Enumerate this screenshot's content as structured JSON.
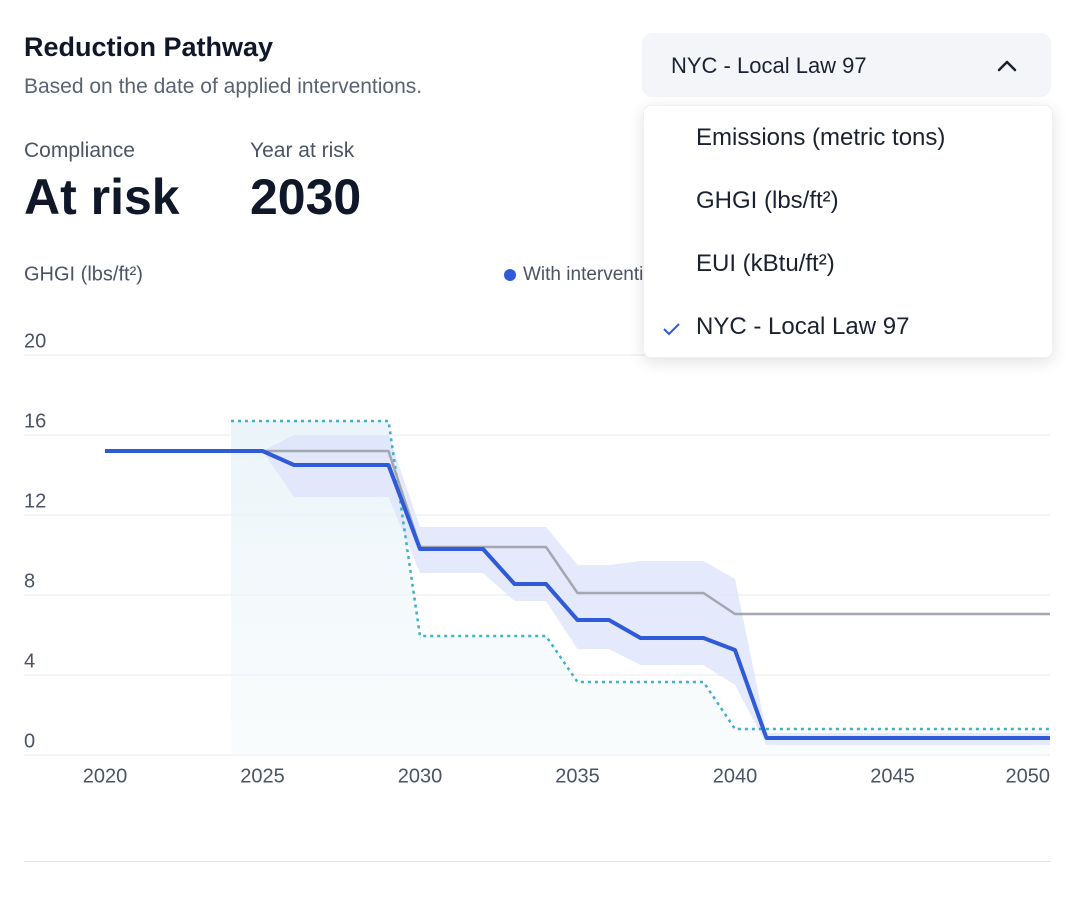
{
  "header": {
    "title": "Reduction Pathway",
    "subtitle": "Based on the date of applied interventions."
  },
  "stats": [
    {
      "label": "Compliance",
      "value": "At risk"
    },
    {
      "label": "Year at risk",
      "value": "2030"
    }
  ],
  "dropdown": {
    "selected": "NYC - Local Law 97",
    "options": [
      "Emissions (metric tons)",
      "GHGI (lbs/ft²)",
      "EUI (kBtu/ft²)",
      "NYC - Local Law 97"
    ],
    "checked": 3
  },
  "chart_data": {
    "type": "line",
    "y_label": "GHGI (lbs/ft²)",
    "xlim": [
      2020,
      2050
    ],
    "xticks": [
      2020,
      2025,
      2030,
      2035,
      2040,
      2045,
      2050
    ],
    "ylim": [
      0,
      20
    ],
    "yticks": [
      0,
      4,
      8,
      12,
      16,
      20
    ],
    "grid": true,
    "band": {
      "color": "#dfe4fb",
      "x": [
        2025,
        2026,
        2029,
        2030,
        2032,
        2033,
        2034,
        2035,
        2036,
        2037,
        2039,
        2040,
        2041,
        2050
      ],
      "upper": [
        15.2,
        16.0,
        16.0,
        11.4,
        11.4,
        11.4,
        11.4,
        9.5,
        9.5,
        9.7,
        9.7,
        8.8,
        1.1,
        1.1
      ],
      "lower": [
        15.2,
        12.9,
        12.9,
        9.1,
        9.1,
        7.7,
        7.7,
        5.3,
        5.3,
        4.5,
        4.5,
        3.5,
        0.5,
        0.5
      ]
    },
    "series": [
      {
        "name": "With interventions",
        "color": "#2f5bd9",
        "width": 4,
        "x": [
          2020,
          2025,
          2026,
          2029,
          2030,
          2032,
          2033,
          2034,
          2035,
          2036,
          2037,
          2039,
          2040,
          2041,
          2050
        ],
        "values": [
          15.2,
          15.2,
          14.5,
          14.5,
          10.3,
          10.3,
          8.55,
          8.55,
          6.75,
          6.75,
          5.85,
          5.85,
          5.25,
          0.85,
          0.85
        ]
      },
      {
        "color": "#a3a7b0",
        "width": 2.5,
        "x": [
          2020,
          2029,
          2030,
          2034,
          2035,
          2039,
          2040,
          2050
        ],
        "values": [
          15.2,
          15.2,
          10.4,
          10.4,
          8.1,
          8.1,
          7.05,
          7.05
        ]
      },
      {
        "color": "#3fb0c8",
        "width": 2.5,
        "style": "dotted",
        "x": [
          2024,
          2029,
          2030,
          2034,
          2035,
          2039,
          2040,
          2050
        ],
        "values": [
          16.7,
          16.7,
          5.95,
          5.95,
          3.65,
          3.65,
          1.3,
          1.3
        ]
      }
    ]
  }
}
